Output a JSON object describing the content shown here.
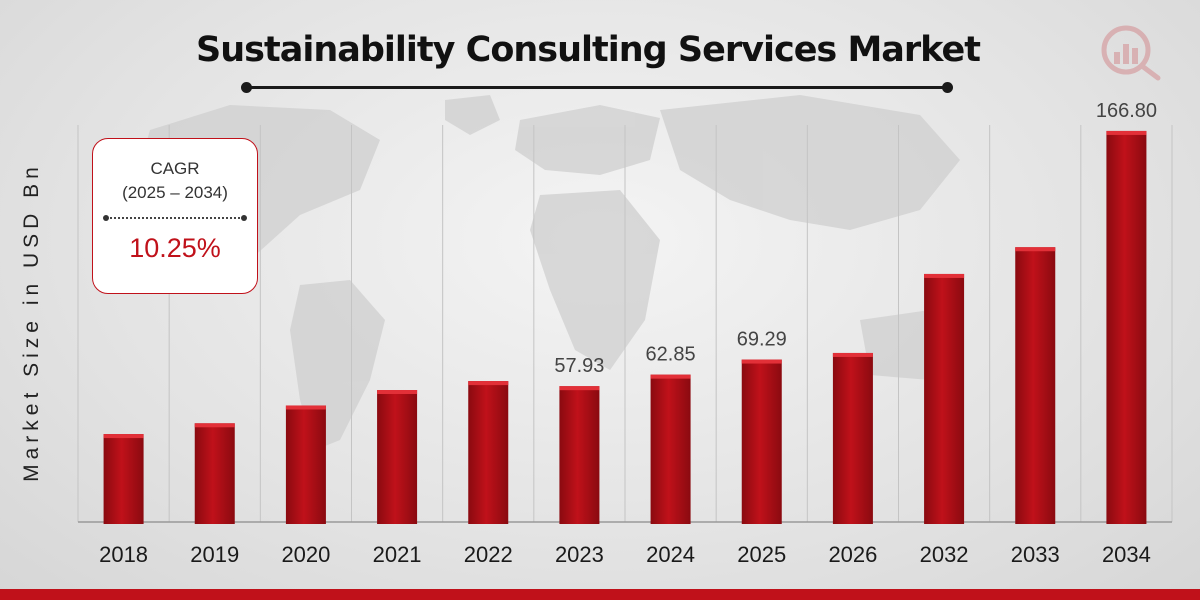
{
  "colors": {
    "bar": "#c0111a",
    "bar_dark": "#8a0a10",
    "accent": "#c0111a"
  },
  "logo": {
    "icon": "market-research-logo-icon"
  },
  "cagr": {
    "label": "CAGR",
    "period": "(2025 – 2034)",
    "value": "10.25%"
  },
  "chart_data": {
    "type": "bar",
    "title": "Sustainability Consulting Services Market",
    "xlabel": "",
    "ylabel": "Market Size in USD Bn",
    "categories": [
      "2018",
      "2019",
      "2020",
      "2021",
      "2022",
      "2023",
      "2024",
      "2025",
      "2026",
      "2032",
      "2033",
      "2034"
    ],
    "values": [
      37.5,
      42.1,
      49.7,
      56.3,
      60.1,
      57.93,
      62.85,
      69.29,
      72.1,
      105.8,
      117.2,
      166.8
    ],
    "data_labels": [
      "",
      "",
      "",
      "",
      "",
      "57.93",
      "62.85",
      "69.29",
      "",
      "",
      "",
      "166.80"
    ],
    "ylim": [
      0,
      180
    ],
    "grid": "vertical",
    "legend": "none"
  }
}
